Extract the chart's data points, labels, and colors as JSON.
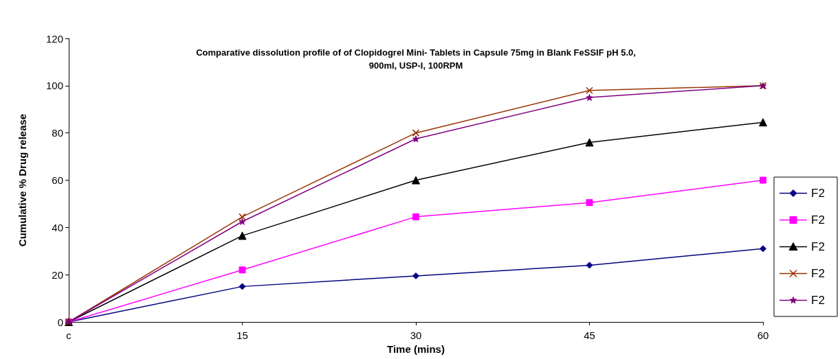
{
  "chart_data": {
    "type": "line",
    "title": "Comparative dissolution profile of of Clopidogrel Mini- Tablets in Capsule 75mg in Blank FeSSIF pH 5.0,\n900ml, USP-I, 100RPM",
    "xlabel": "Time (mins)",
    "ylabel": "Cumulative % Drug release",
    "categories": [
      "c",
      "15",
      "30",
      "45",
      "60"
    ],
    "series": [
      {
        "name": "F2",
        "color": "#000080",
        "marker": "diamond",
        "values": [
          0,
          15,
          19.5,
          24,
          31
        ]
      },
      {
        "name": "F2",
        "color": "#ff00ff",
        "marker": "square",
        "values": [
          0,
          22,
          44.5,
          50.5,
          60
        ]
      },
      {
        "name": "F2",
        "color": "#000000",
        "marker": "triangle",
        "values": [
          0,
          36.5,
          60,
          76,
          84.5
        ]
      },
      {
        "name": "F2",
        "color": "#993300",
        "marker": "cross",
        "values": [
          0,
          44.5,
          80,
          98,
          100
        ]
      },
      {
        "name": "F2",
        "color": "#800080",
        "marker": "star",
        "values": [
          0,
          42.5,
          77.5,
          95,
          100
        ]
      }
    ],
    "ylim": [
      0,
      120
    ],
    "yticks": [
      0,
      20,
      40,
      60,
      80,
      100,
      120
    ],
    "grid": false,
    "legend": "right",
    "line_style": "solid"
  }
}
